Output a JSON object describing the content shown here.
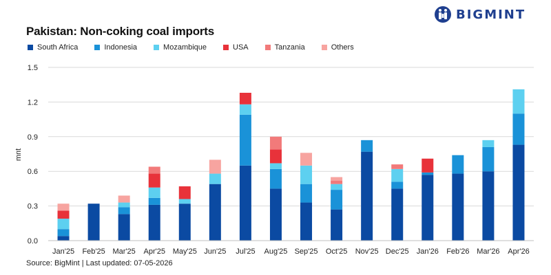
{
  "title": "Pakistan: Non-coking coal imports",
  "brand": "BIGMINT",
  "source": "Source: BigMint | Last updated: 07-05-2026",
  "chart_data": {
    "type": "bar",
    "stacked": true,
    "title": "Pakistan: Non-coking coal imports",
    "xlabel": "",
    "ylabel": "mnt",
    "ylim": [
      0,
      1.5
    ],
    "yticks": [
      "0.0",
      "0.3",
      "0.6",
      "0.9",
      "1.2",
      "1.5"
    ],
    "grid": true,
    "legend_position": "top-left",
    "categories": [
      "Jan'25",
      "Feb'25",
      "Mar'25",
      "Apr'25",
      "May'25",
      "Jun'25",
      "Jul'25",
      "Aug'25",
      "Sep'25",
      "Oct'25",
      "Nov'25",
      "Dec'25",
      "Jan'26",
      "Feb'26",
      "Mar'26",
      "Apr'26"
    ],
    "series": [
      {
        "name": "South Africa",
        "color": "#0b4aa2",
        "values": [
          0.04,
          0.32,
          0.23,
          0.31,
          0.32,
          0.49,
          0.65,
          0.45,
          0.33,
          0.27,
          0.77,
          0.45,
          0.57,
          0.58,
          0.6,
          0.83
        ]
      },
      {
        "name": "Indonesia",
        "color": "#1a92d8",
        "values": [
          0.06,
          0.0,
          0.06,
          0.06,
          0.0,
          0.0,
          0.44,
          0.17,
          0.16,
          0.17,
          0.1,
          0.06,
          0.02,
          0.16,
          0.21,
          0.27
        ]
      },
      {
        "name": "Mozambique",
        "color": "#5dd0f0",
        "values": [
          0.09,
          0.0,
          0.04,
          0.09,
          0.04,
          0.09,
          0.09,
          0.05,
          0.16,
          0.05,
          0.0,
          0.11,
          0.0,
          0.0,
          0.06,
          0.21
        ]
      },
      {
        "name": "USA",
        "color": "#e8323a",
        "values": [
          0.07,
          0.0,
          0.0,
          0.12,
          0.11,
          0.0,
          0.1,
          0.12,
          0.0,
          0.0,
          0.0,
          0.0,
          0.12,
          0.0,
          0.0,
          0.0
        ]
      },
      {
        "name": "Tanzania",
        "color": "#f27a7a",
        "values": [
          0.0,
          0.0,
          0.0,
          0.06,
          0.0,
          0.0,
          0.0,
          0.11,
          0.0,
          0.03,
          0.0,
          0.04,
          0.0,
          0.0,
          0.0,
          0.0
        ]
      },
      {
        "name": "Others",
        "color": "#f7a4a0",
        "values": [
          0.06,
          0.0,
          0.06,
          0.0,
          0.0,
          0.12,
          0.0,
          0.0,
          0.11,
          0.03,
          0.0,
          0.0,
          0.0,
          0.0,
          0.0,
          0.0
        ]
      }
    ]
  }
}
